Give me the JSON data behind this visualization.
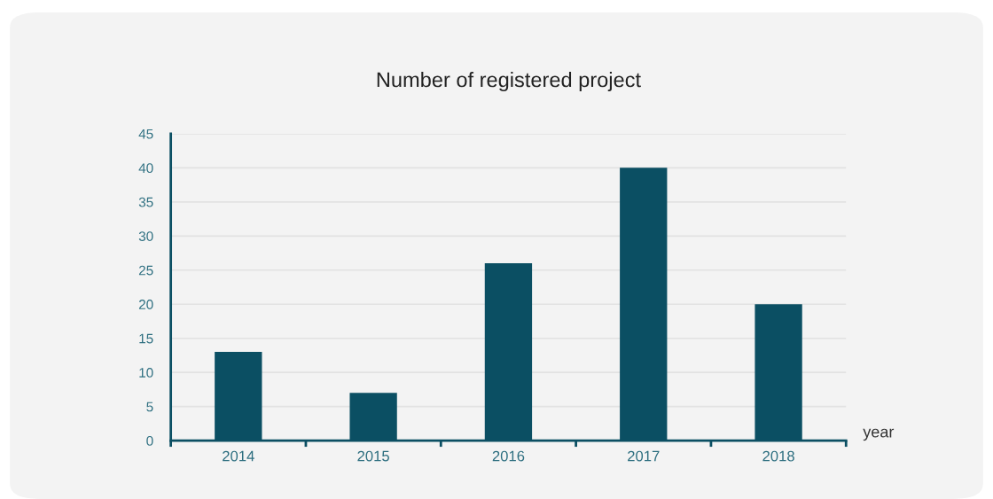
{
  "chart_data": {
    "type": "bar",
    "title": "Number of registered project",
    "xlabel": "year",
    "categories": [
      "2014",
      "2015",
      "2016",
      "2017",
      "2018"
    ],
    "values": [
      13,
      7,
      26,
      40,
      20
    ],
    "color": "#0b4f63",
    "ylim": [
      0,
      45
    ],
    "yticks": [
      0,
      5,
      10,
      15,
      20,
      25,
      30,
      35,
      40,
      45
    ],
    "grid": "y",
    "legend": false
  }
}
